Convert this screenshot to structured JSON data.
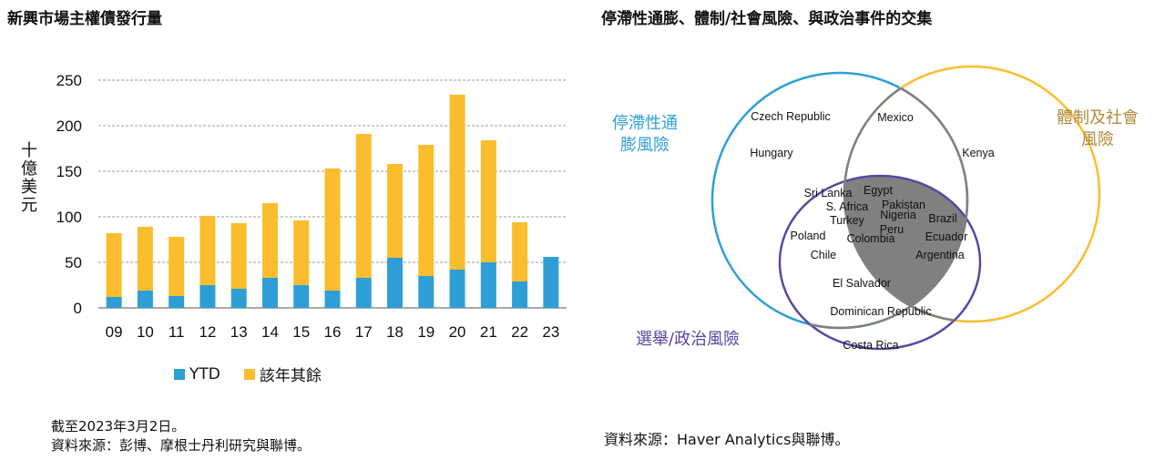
{
  "left": {
    "title": "新興市場主權債發行量",
    "ylabel": "十億美元",
    "legend": {
      "ytd": "YTD",
      "rest": "該年其餘"
    },
    "note1": "截至2023年3月2日。",
    "note2": "資料來源：彭博、摩根士丹利研究與聯博。"
  },
  "right": {
    "title": "停滯性通膨、體制/社會風險、與政治事件的交集",
    "label_stag": "停滯性通\n膨風險",
    "label_inst": "體制及社會\n風險",
    "label_pol": "選舉/政治風險",
    "source": "資料來源：Haver Analytics與聯博。",
    "countries": [
      "Czech Republic",
      "Mexico",
      "Hungary",
      "Kenya",
      "Sri Lanka",
      "Egypt",
      "S. Africa",
      "Pakistan",
      "Nigeria",
      "Turkey",
      "Brazil",
      "Peru",
      "Poland",
      "Colombia",
      "Ecuador",
      "Chile",
      "Argentina",
      "El Salvador",
      "Dominican Republic",
      "Costa Rica"
    ]
  },
  "colors": {
    "ytd": "#2e9fd6",
    "rest": "#fbbd2e",
    "stag": "#2e9fd6",
    "inst": "#fbbd2e",
    "pol": "#5a46a3",
    "grey": "#808080"
  },
  "chart_data": {
    "type": "bar",
    "stacked": true,
    "categories": [
      "09",
      "10",
      "11",
      "12",
      "13",
      "14",
      "15",
      "16",
      "17",
      "18",
      "19",
      "20",
      "21",
      "22",
      "23"
    ],
    "series": [
      {
        "name": "YTD",
        "values": [
          12,
          19,
          13,
          25,
          21,
          33,
          25,
          19,
          33,
          55,
          35,
          42,
          50,
          29,
          56
        ]
      },
      {
        "name": "該年其餘",
        "values": [
          70,
          70,
          65,
          76,
          72,
          82,
          71,
          134,
          158,
          103,
          144,
          192,
          134,
          65,
          0
        ]
      }
    ],
    "ylabel": "十億美元",
    "ylim": [
      0,
      250
    ],
    "yticks": [
      0,
      50,
      100,
      150,
      200,
      250
    ],
    "grid": true,
    "legend_position": "bottom"
  }
}
